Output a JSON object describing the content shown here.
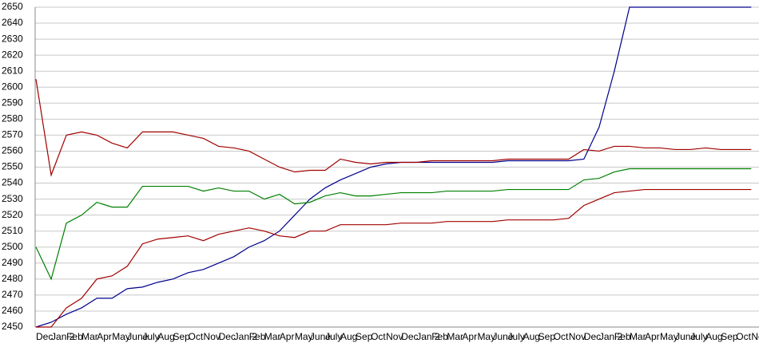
{
  "chart_data": {
    "type": "line",
    "categories": [
      "Dec",
      "Jan 2",
      "Feb",
      "Mar",
      "Apr",
      "May",
      "June",
      "July",
      "Aug",
      "Sep",
      "Oct",
      "Nov",
      "Dec",
      "Jan 2",
      "Feb",
      "Mar",
      "Apr",
      "May",
      "June",
      "July",
      "Aug",
      "Sep",
      "Oct",
      "Nov",
      "Dec",
      "Jan 2",
      "Feb",
      "Mar",
      "Apr",
      "May",
      "June",
      "July",
      "Aug",
      "Sep",
      "Oct",
      "Nov",
      "Dec",
      "Jan 2",
      "Feb",
      "Mar",
      "Apr",
      "May",
      "June",
      "July",
      "Aug",
      "Sep",
      "Oct",
      "Nov"
    ],
    "series": [
      {
        "color": "#00008b",
        "values": [
          2450,
          2453,
          2458,
          2462,
          2468,
          2468,
          2474,
          2475,
          2478,
          2480,
          2484,
          2486,
          2490,
          2494,
          2500,
          2504,
          2510,
          2520,
          2530,
          2537,
          2542,
          2546,
          2550,
          2552,
          2553,
          2553,
          2553,
          2553,
          2553,
          2553,
          2553,
          2554,
          2554,
          2554,
          2554,
          2554,
          2555,
          2575,
          2610,
          2650,
          2650,
          2650,
          2650,
          2650,
          2650,
          2650,
          2650,
          2650
        ]
      },
      {
        "color": "#a00000",
        "values": [
          2605,
          2545,
          2570,
          2572,
          2570,
          2565,
          2562,
          2572,
          2572,
          2572,
          2570,
          2568,
          2563,
          2562,
          2560,
          2555,
          2550,
          2547,
          2548,
          2548,
          2555,
          2553,
          2552,
          2553,
          2553,
          2553,
          2554,
          2554,
          2554,
          2554,
          2554,
          2555,
          2555,
          2555,
          2555,
          2555,
          2561,
          2560,
          2563,
          2563,
          2562,
          2562,
          2561,
          2561,
          2562,
          2561,
          2561,
          2561
        ]
      },
      {
        "color": "#008000",
        "values": [
          2500,
          2480,
          2515,
          2520,
          2528,
          2525,
          2525,
          2538,
          2538,
          2538,
          2538,
          2535,
          2537,
          2535,
          2535,
          2530,
          2533,
          2527,
          2528,
          2532,
          2534,
          2532,
          2532,
          2533,
          2534,
          2534,
          2534,
          2535,
          2535,
          2535,
          2535,
          2536,
          2536,
          2536,
          2536,
          2536,
          2542,
          2543,
          2547,
          2549,
          2549,
          2549,
          2549,
          2549,
          2549,
          2549,
          2549,
          2549
        ]
      },
      {
        "color": "#a00000",
        "values": [
          2450,
          2450,
          2462,
          2468,
          2480,
          2482,
          2488,
          2502,
          2505,
          2506,
          2507,
          2504,
          2508,
          2510,
          2512,
          2510,
          2507,
          2506,
          2510,
          2510,
          2514,
          2514,
          2514,
          2514,
          2515,
          2515,
          2515,
          2516,
          2516,
          2516,
          2516,
          2517,
          2517,
          2517,
          2517,
          2518,
          2526,
          2530,
          2534,
          2535,
          2536,
          2536,
          2536,
          2536,
          2536,
          2536,
          2536,
          2536
        ]
      }
    ],
    "ylim": [
      2450,
      2650
    ],
    "yticks": [
      2450,
      2460,
      2470,
      2480,
      2490,
      2500,
      2510,
      2520,
      2530,
      2540,
      2550,
      2560,
      2570,
      2580,
      2590,
      2600,
      2610,
      2620,
      2630,
      2640,
      2650
    ],
    "grid": true
  }
}
